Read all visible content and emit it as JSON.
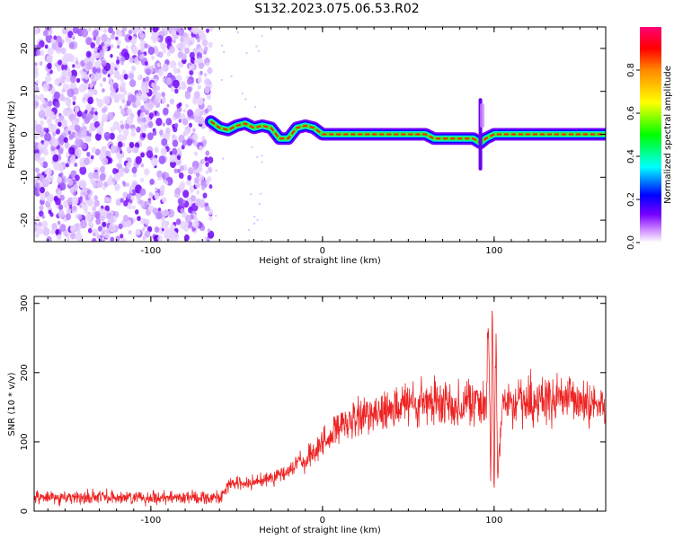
{
  "title": "S132.2023.075.06.53.R02",
  "colors": {
    "snr_line": "#ee2222",
    "axis": "#000000",
    "colorbar": [
      "#ffffff",
      "#cc88ff",
      "#7700ff",
      "#0000ff",
      "#00ffff",
      "#00ff00",
      "#ffff00",
      "#ff8800",
      "#ff0000",
      "#ff0077"
    ]
  },
  "chart_data": [
    {
      "type": "heatmap",
      "xlabel": "Height of straight line (km)",
      "ylabel": "Frequency (Hz)",
      "xlim": [
        -168,
        165
      ],
      "ylim": [
        -25,
        25
      ],
      "xticks": [
        -100,
        0,
        100
      ],
      "yticks": [
        -20,
        -10,
        0,
        10,
        20
      ],
      "colorbar": {
        "label": "Normalized spectral amplitude",
        "range": [
          0,
          1
        ],
        "ticks": [
          "0.0",
          "0.2",
          "0.4",
          "0.6",
          "0.8"
        ]
      },
      "noise_region_x": [
        -168,
        -65
      ],
      "ridge": {
        "x": [
          -65,
          -60,
          -55,
          -50,
          -45,
          -40,
          -35,
          -30,
          -25,
          -20,
          -15,
          -10,
          -5,
          0,
          20,
          40,
          60,
          65,
          70,
          80,
          88,
          92,
          95,
          100,
          120,
          140,
          165
        ],
        "freq_hz": [
          3,
          1.5,
          1,
          2,
          2.5,
          1.5,
          2,
          1.5,
          -1,
          -1,
          1.5,
          2,
          1.5,
          0,
          0,
          0,
          0,
          -1,
          -1,
          -1,
          -1,
          -2,
          -1,
          0,
          0,
          0,
          0
        ]
      },
      "spike": {
        "x": 92,
        "freq_range_hz": [
          -8,
          8
        ]
      }
    },
    {
      "type": "line",
      "xlabel": "Height of straight line (km)",
      "ylabel": "SNR (10 * v/v)",
      "xlim": [
        -168,
        165
      ],
      "ylim": [
        0,
        310
      ],
      "xticks": [
        -100,
        0,
        100
      ],
      "yticks": [
        0,
        100,
        200,
        300
      ],
      "series": [
        {
          "x": [
            -168,
            -140,
            -110,
            -80,
            -60,
            -55,
            -50,
            -40,
            -30,
            -20,
            -15,
            -10,
            -5,
            0,
            10,
            20,
            30,
            40,
            60,
            80,
            90,
            95,
            97,
            98,
            99,
            100,
            101,
            102,
            105,
            110,
            120,
            140,
            160,
            165
          ],
          "values": [
            20,
            20,
            20,
            20,
            20,
            35,
            40,
            40,
            50,
            55,
            70,
            70,
            85,
            100,
            120,
            130,
            145,
            150,
            155,
            155,
            160,
            150,
            250,
            40,
            300,
            5,
            280,
            40,
            160,
            160,
            160,
            160,
            155,
            150
          ]
        }
      ]
    }
  ]
}
